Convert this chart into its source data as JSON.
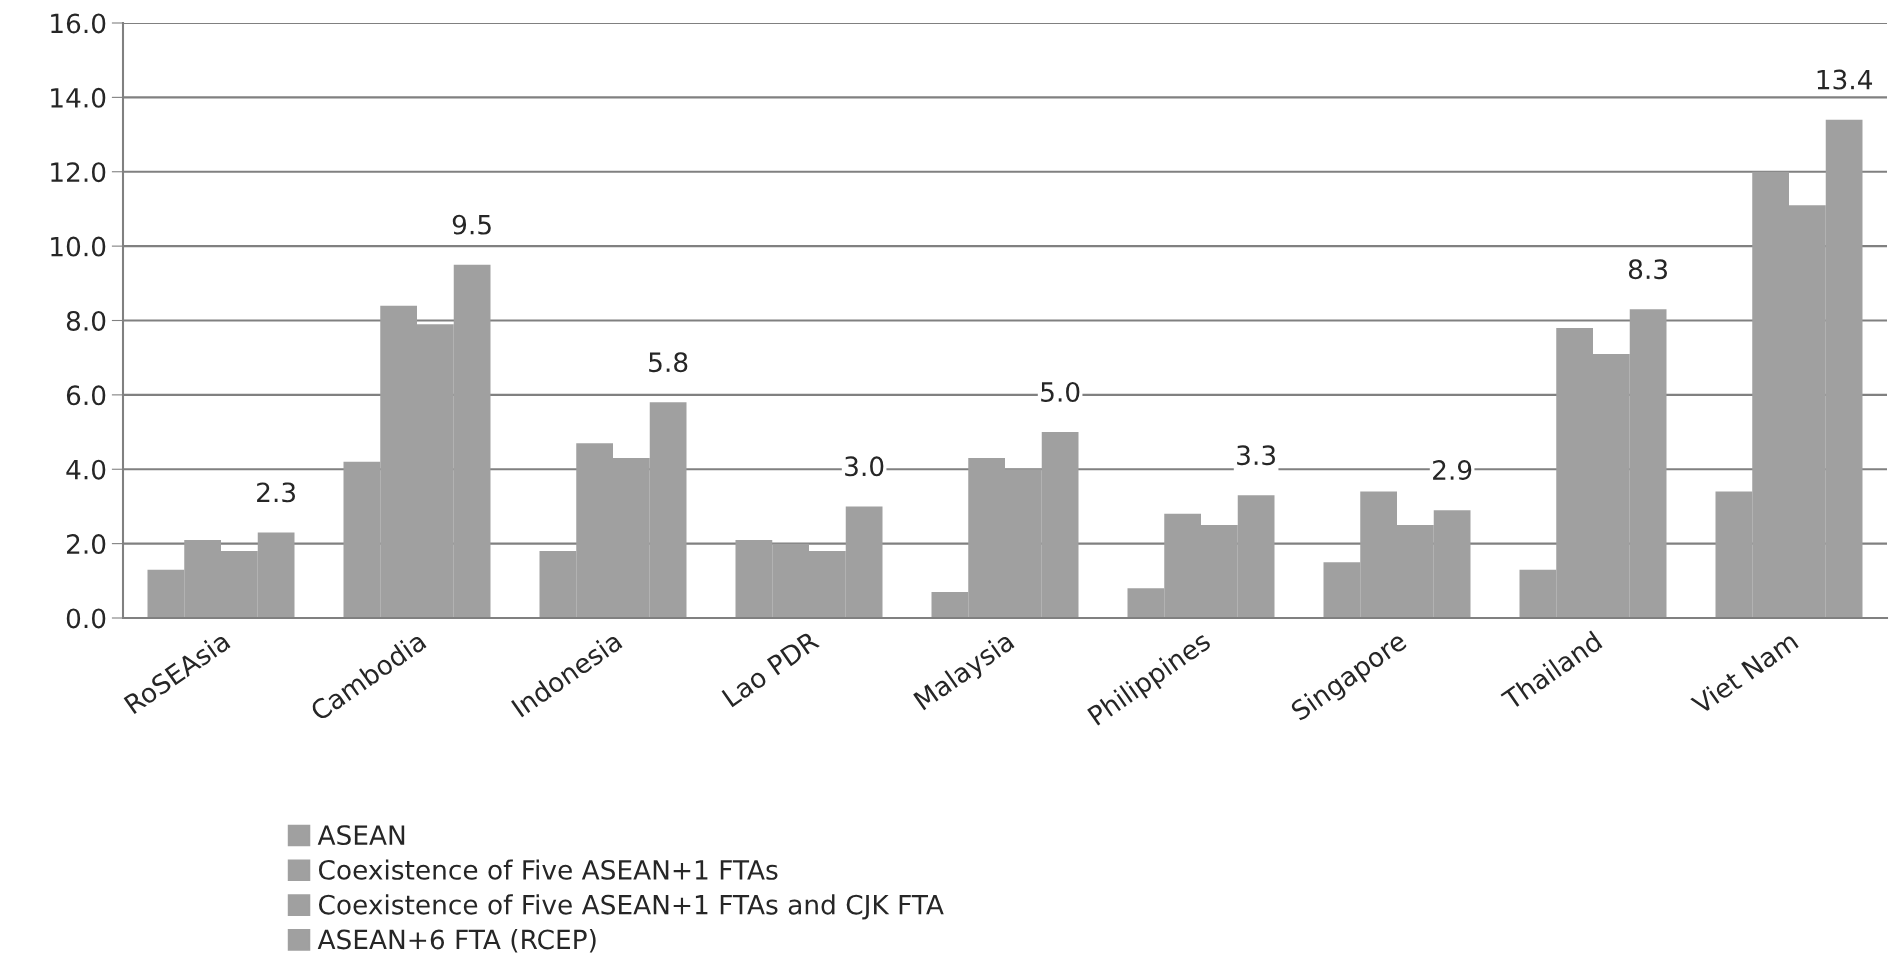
{
  "chart_data": {
    "type": "bar",
    "categories": [
      "RoSEAsia",
      "Cambodia",
      "Indonesia",
      "Lao PDR",
      "Malaysia",
      "Philippines",
      "Singapore",
      "Thailand",
      "Viet Nam"
    ],
    "series": [
      {
        "name": "ASEAN",
        "color": "#a0a0a0",
        "values": [
          1.3,
          4.2,
          1.8,
          2.1,
          0.7,
          0.8,
          1.5,
          1.3,
          3.4
        ]
      },
      {
        "name": "Coexistence of Five ASEAN+1 FTAs",
        "color": "#a0a0a0",
        "values": [
          2.1,
          8.4,
          4.7,
          2.0,
          4.3,
          2.8,
          3.4,
          7.8,
          12.0
        ]
      },
      {
        "name": "Coexistence of Five ASEAN+1 FTAs and CJK FTA",
        "color": "#a0a0a0",
        "values": [
          1.8,
          7.9,
          4.3,
          1.8,
          4.0,
          2.5,
          2.5,
          7.1,
          11.1
        ]
      },
      {
        "name": "ASEAN+6 FTA (RCEP)",
        "color": "#a0a0a0",
        "values": [
          2.3,
          9.5,
          5.8,
          3.0,
          5.0,
          3.3,
          2.9,
          8.3,
          13.4
        ],
        "value_labels": [
          "2.3",
          "9.5",
          "5.8",
          "3.0",
          "5.0",
          "3.3",
          "2.9",
          "8.3",
          "13.4"
        ]
      }
    ],
    "ylim": [
      0,
      16
    ],
    "yticks": [
      {
        "value": 0,
        "label": "0.0"
      },
      {
        "value": 2,
        "label": "2.0"
      },
      {
        "value": 4,
        "label": "4.0"
      },
      {
        "value": 6,
        "label": "6.0"
      },
      {
        "value": 8,
        "label": "8.0"
      },
      {
        "value": 10,
        "label": "10.0"
      },
      {
        "value": 12,
        "label": "12.0"
      },
      {
        "value": 14,
        "label": "14.0"
      },
      {
        "value": 16,
        "label": "16.0"
      }
    ],
    "grid": "y",
    "legend": "bottom"
  }
}
